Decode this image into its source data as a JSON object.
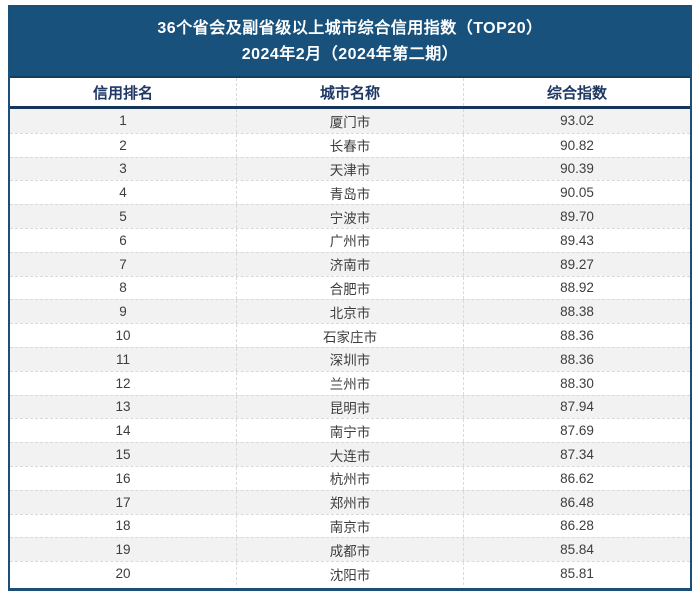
{
  "title": {
    "line1": "36个省会及副省级以上城市综合信用指数（TOP20）",
    "line2": "2024年2月（2024年第二期）"
  },
  "table": {
    "columns": {
      "rank": "信用排名",
      "city": "城市名称",
      "index": "综合指数"
    }
  },
  "colors": {
    "band_bg": "#17517c",
    "band_text": "#ffffff",
    "column_header_text": "#1f3864",
    "outer_border": "#1c4f78",
    "header_rule": "#16365c",
    "alt_row_bg": "#f2f2f2",
    "row_divider": "#d9d9d9",
    "cell_text": "#3d3d3d"
  },
  "chart_data": {
    "type": "table",
    "title": "36个省会及副省级以上城市综合信用指数（TOP20） 2024年2月（2024年第二期）",
    "columns": [
      "信用排名",
      "城市名称",
      "综合指数"
    ],
    "rows": [
      {
        "rank": "1",
        "city": "厦门市",
        "index": "93.02"
      },
      {
        "rank": "2",
        "city": "长春市",
        "index": "90.82"
      },
      {
        "rank": "3",
        "city": "天津市",
        "index": "90.39"
      },
      {
        "rank": "4",
        "city": "青岛市",
        "index": "90.05"
      },
      {
        "rank": "5",
        "city": "宁波市",
        "index": "89.70"
      },
      {
        "rank": "6",
        "city": "广州市",
        "index": "89.43"
      },
      {
        "rank": "7",
        "city": "济南市",
        "index": "89.27"
      },
      {
        "rank": "8",
        "city": "合肥市",
        "index": "88.92"
      },
      {
        "rank": "9",
        "city": "北京市",
        "index": "88.38"
      },
      {
        "rank": "10",
        "city": "石家庄市",
        "index": "88.36"
      },
      {
        "rank": "11",
        "city": "深圳市",
        "index": "88.36"
      },
      {
        "rank": "12",
        "city": "兰州市",
        "index": "88.30"
      },
      {
        "rank": "13",
        "city": "昆明市",
        "index": "87.94"
      },
      {
        "rank": "14",
        "city": "南宁市",
        "index": "87.69"
      },
      {
        "rank": "15",
        "city": "大连市",
        "index": "87.34"
      },
      {
        "rank": "16",
        "city": "杭州市",
        "index": "86.62"
      },
      {
        "rank": "17",
        "city": "郑州市",
        "index": "86.48"
      },
      {
        "rank": "18",
        "city": "南京市",
        "index": "86.28"
      },
      {
        "rank": "19",
        "city": "成都市",
        "index": "85.84"
      },
      {
        "rank": "20",
        "city": "沈阳市",
        "index": "85.81"
      }
    ]
  }
}
